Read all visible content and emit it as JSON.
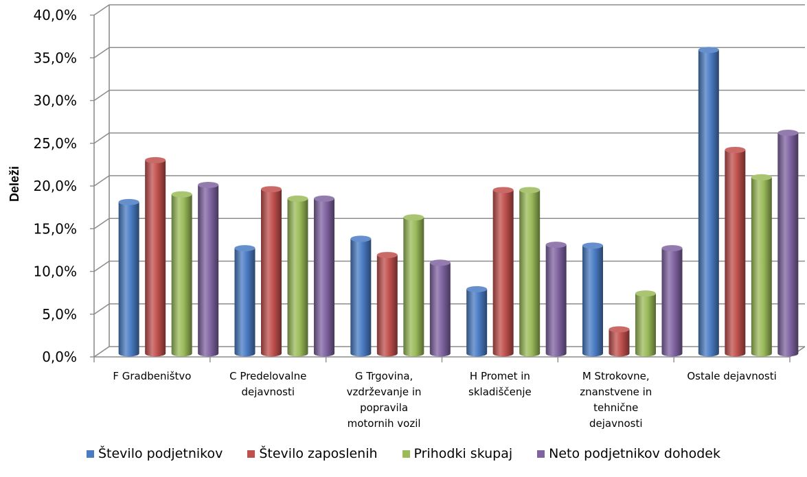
{
  "chart_data": {
    "type": "bar",
    "ylabel": "Deleži",
    "ylim": [
      0,
      40
    ],
    "yticks": [
      "0,0%",
      "5,0%",
      "10,0%",
      "15,0%",
      "20,0%",
      "25,0%",
      "30,0%",
      "35,0%",
      "40,0%"
    ],
    "grid": true,
    "legend_position": "bottom",
    "categories": [
      [
        "F Gradbeništvo"
      ],
      [
        "C Predelovalne",
        "dejavnosti"
      ],
      [
        "G Trgovina,",
        "vzdrževanje in",
        "popravila",
        "motornih vozil"
      ],
      [
        "H Promet in",
        "skladiščenje"
      ],
      [
        "M Strokovne,",
        "znanstvene in",
        "tehnične",
        "dejavnosti"
      ],
      [
        "Ostale dejavnosti"
      ]
    ],
    "series": [
      {
        "name": "Število podjetnikov",
        "color": "#4a7cc4",
        "values": [
          17.8,
          12.4,
          13.5,
          7.6,
          12.7,
          35.6
        ]
      },
      {
        "name": "Število zaposlenih",
        "color": "#c0504d",
        "values": [
          22.7,
          19.3,
          11.6,
          19.2,
          2.9,
          23.9
        ]
      },
      {
        "name": "Prihodki skupaj",
        "color": "#9bbb59",
        "values": [
          18.7,
          18.2,
          16.0,
          19.2,
          7.1,
          20.7
        ]
      },
      {
        "name": "Neto podjetnikov dohodek",
        "color": "#8064a2",
        "values": [
          19.8,
          18.2,
          10.7,
          12.8,
          12.4,
          25.9
        ]
      }
    ]
  }
}
